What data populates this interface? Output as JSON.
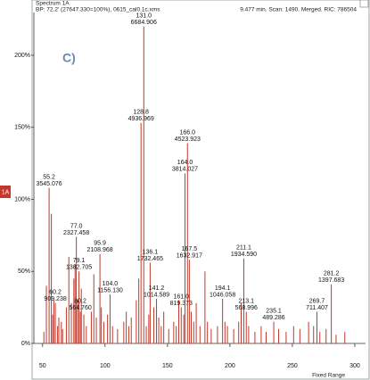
{
  "chart_data": {
    "type": "bar",
    "title": "Spectrum 1A",
    "subtitle": "BP: 72.2' (27647.330=100%), 0615_cal0.1c.xms",
    "info": "9.477 min. Scan: 1490. Merged. RIC: 786504",
    "panel_label": "C)",
    "trace_tag": "1A",
    "x_axis_note": "Fixed Range",
    "xlim": [
      43,
      308.6
    ],
    "xticks": [
      50,
      100,
      150,
      200,
      250,
      300
    ],
    "ylim": [
      0,
      230
    ],
    "yticks": [
      {
        "value": 0,
        "label": "0%"
      },
      {
        "value": 50,
        "label": "50%"
      },
      {
        "value": 100,
        "label": "100%"
      },
      {
        "value": 150,
        "label": "150%"
      },
      {
        "value": 200,
        "label": "200%"
      }
    ],
    "color": "#c0392b",
    "peaks": {
      "x": [
        55.2,
        60.2,
        77.0,
        79.1,
        80.2,
        95.9,
        104.0,
        128.8,
        131.0,
        136.1,
        141.2,
        161.0,
        164.0,
        166.0,
        167.5,
        194.1,
        211.1,
        213.1,
        235.1,
        269.7,
        281.2
      ],
      "x_labels": [
        "55.2",
        "60.2",
        "77.0",
        "79.1",
        "80.2",
        "95.9",
        "104.0",
        "128.8",
        "131.0",
        "136.1",
        "141.2",
        "161.0",
        "164.0",
        "166.0",
        "167.5",
        "194.1",
        "211.1",
        "213.1",
        "235.1",
        "269.7",
        "281.2"
      ],
      "values": [
        108,
        28,
        74,
        50,
        22,
        62,
        34,
        153,
        220,
        56,
        31,
        25,
        118,
        139,
        58,
        31,
        59,
        22,
        15,
        22,
        41
      ],
      "intensity_labels": [
        "3545.076",
        "909.238",
        "2327.458",
        "1382.705",
        "564.760",
        "2108.968",
        "1156.130",
        "4936.969",
        "6684.906",
        "1732.465",
        "1014.589",
        "819.373",
        "3814.027",
        "4523.923",
        "1632.917",
        "1046.058",
        "1934.590",
        "568.996",
        "489.286",
        "711.407",
        "1397.683"
      ]
    },
    "minor_peaks": {
      "x": [
        51,
        53,
        57,
        58,
        59,
        62,
        63,
        65,
        66,
        69,
        71,
        73,
        75,
        76,
        78,
        81,
        83,
        85,
        89,
        91,
        93,
        97,
        99,
        102,
        106,
        110,
        115,
        117,
        119,
        121,
        125,
        127,
        133,
        135,
        139,
        143,
        145,
        147,
        151,
        155,
        157,
        159,
        163,
        169,
        171,
        173,
        176,
        180,
        182,
        185,
        190,
        196,
        198,
        203,
        207,
        209,
        215,
        220,
        225,
        229,
        239,
        245,
        251,
        256,
        263,
        267,
        272,
        277,
        285,
        292
      ],
      "values": [
        8,
        40,
        90,
        20,
        30,
        12,
        18,
        15,
        10,
        25,
        60,
        28,
        45,
        55,
        30,
        38,
        20,
        12,
        22,
        48,
        18,
        25,
        15,
        20,
        12,
        10,
        15,
        22,
        12,
        18,
        30,
        45,
        12,
        20,
        25,
        18,
        12,
        22,
        10,
        15,
        12,
        30,
        20,
        22,
        15,
        28,
        12,
        50,
        15,
        10,
        12,
        15,
        12,
        10,
        15,
        28,
        12,
        8,
        12,
        8,
        10,
        8,
        12,
        10,
        15,
        12,
        8,
        10,
        6,
        8
      ]
    }
  }
}
